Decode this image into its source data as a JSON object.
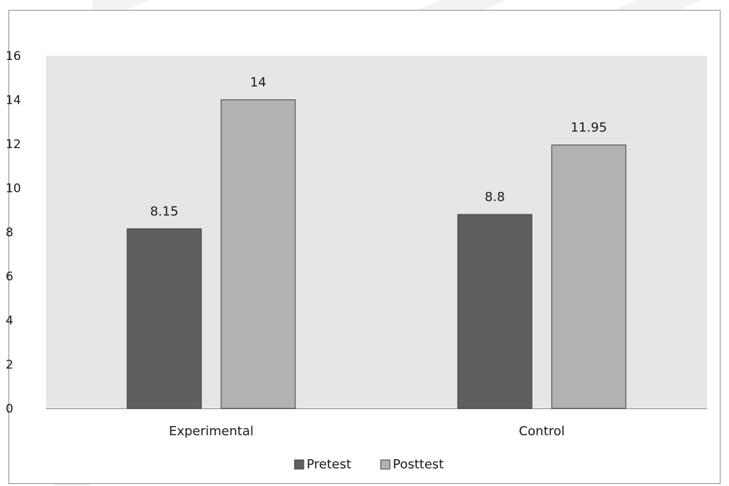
{
  "chart_data": {
    "type": "bar",
    "title": "",
    "xlabel": "",
    "ylabel": "",
    "categories": [
      "Experimental",
      "Control"
    ],
    "series": [
      {
        "name": "Pretest",
        "values": [
          8.15,
          8.8
        ],
        "color": "#5f5f5f"
      },
      {
        "name": "Posttest",
        "values": [
          14,
          11.95
        ],
        "color": "#b2b2b2"
      }
    ],
    "data_labels": [
      [
        "8.15",
        "8.8"
      ],
      [
        "14",
        "11.95"
      ]
    ],
    "ylim": [
      0,
      16
    ],
    "yticks": [
      "0",
      "2",
      "4",
      "6",
      "8",
      "10",
      "12",
      "14",
      "16"
    ],
    "grid": false,
    "plot_background": "#e6e6e6",
    "legend_position": "bottom"
  }
}
